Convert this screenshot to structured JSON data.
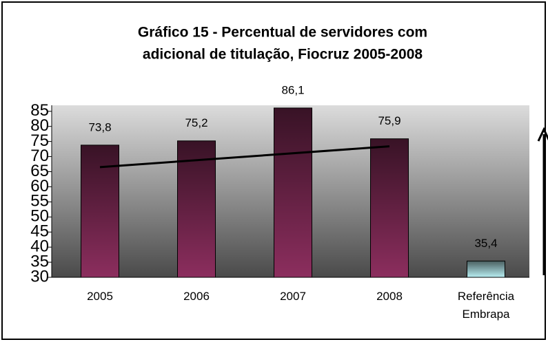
{
  "chart_data": {
    "type": "bar",
    "title": "Gráfico 15 - Percentual de servidores com",
    "subtitle": "adicional de titulação, Fiocruz 2005-2008",
    "categories": [
      "2005",
      "2006",
      "2007",
      "2008",
      "Referência Embrapa"
    ],
    "values": [
      73.8,
      75.2,
      86.1,
      75.9,
      35.4
    ],
    "value_labels": [
      "73,8",
      "75,2",
      "86,1",
      "75,9",
      "35,4"
    ],
    "colors": [
      "#8c2e5e",
      "#8c2e5e",
      "#8c2e5e",
      "#8c2e5e",
      "#b8eef2"
    ],
    "trend": {
      "values": [
        66.5,
        73.4
      ],
      "color": "#000000"
    },
    "ylim": [
      30,
      87
    ],
    "yticks": [
      30,
      35,
      40,
      45,
      50,
      55,
      60,
      65,
      70,
      75,
      80,
      85
    ]
  }
}
